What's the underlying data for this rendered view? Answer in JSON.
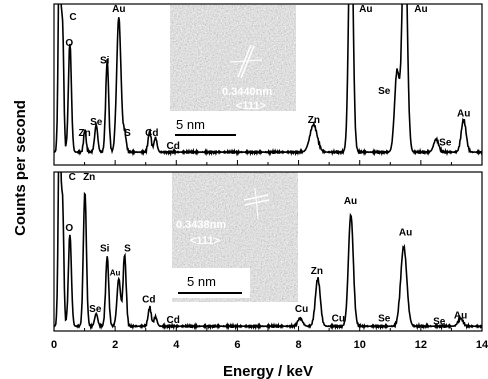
{
  "chart_data": {
    "type": "line",
    "xlabel": "Energy / keV",
    "ylabel": "Counts per second",
    "xlim": [
      0,
      14
    ],
    "xticks": [
      0,
      2,
      4,
      6,
      8,
      10,
      12,
      14
    ],
    "grid": false,
    "panels": [
      {
        "id": "top",
        "ylim": [
          0,
          100
        ],
        "baseline": 8,
        "peaks": [
          {
            "x": 0.18,
            "y": 140,
            "w": 0.04
          },
          {
            "x": 0.28,
            "y": 76,
            "w": 0.04
          },
          {
            "x": 0.52,
            "y": 68,
            "w": 0.05
          },
          {
            "x": 1.01,
            "y": 14,
            "w": 0.04
          },
          {
            "x": 1.38,
            "y": 17,
            "w": 0.05
          },
          {
            "x": 1.74,
            "y": 57,
            "w": 0.05
          },
          {
            "x": 2.12,
            "y": 84,
            "w": 0.07
          },
          {
            "x": 2.31,
            "y": 12,
            "w": 0.05
          },
          {
            "x": 3.13,
            "y": 13,
            "w": 0.05
          },
          {
            "x": 3.32,
            "y": 9,
            "w": 0.05
          },
          {
            "x": 8.49,
            "y": 17,
            "w": 0.12
          },
          {
            "x": 9.71,
            "y": 160,
            "w": 0.07
          },
          {
            "x": 11.22,
            "y": 50,
            "w": 0.08
          },
          {
            "x": 11.47,
            "y": 150,
            "w": 0.08
          },
          {
            "x": 12.5,
            "y": 8,
            "w": 0.08
          },
          {
            "x": 13.4,
            "y": 20,
            "w": 0.08
          }
        ],
        "labels": [
          {
            "text": "C",
            "x": 0.62,
            "y": 90
          },
          {
            "text": "O",
            "x": 0.5,
            "y": 74
          },
          {
            "text": "Au",
            "x": 2.12,
            "y": 95
          },
          {
            "text": "Si",
            "x": 1.66,
            "y": 63
          },
          {
            "text": "Se",
            "x": 1.38,
            "y": 25
          },
          {
            "text": "Zn",
            "x": 1.0,
            "y": 18
          },
          {
            "text": "S",
            "x": 2.4,
            "y": 18
          },
          {
            "text": "Cd",
            "x": 3.2,
            "y": 18
          },
          {
            "text": "Cd",
            "x": 3.9,
            "y": 10
          },
          {
            "text": "Zn",
            "x": 8.5,
            "y": 26
          },
          {
            "text": "Au",
            "x": 10.2,
            "y": 95
          },
          {
            "text": "Se",
            "x": 10.8,
            "y": 44
          },
          {
            "text": "Au",
            "x": 12.0,
            "y": 95
          },
          {
            "text": "Se",
            "x": 12.8,
            "y": 12
          },
          {
            "text": "Au",
            "x": 13.4,
            "y": 30
          }
        ],
        "inset": {
          "spacing_label": "0.3440nm",
          "plane_label": "<111>",
          "scale_label": "5 nm"
        }
      },
      {
        "id": "bottom",
        "ylim": [
          0,
          100
        ],
        "baseline": 3,
        "peaks": [
          {
            "x": 0.18,
            "y": 140,
            "w": 0.04
          },
          {
            "x": 0.28,
            "y": 76,
            "w": 0.04
          },
          {
            "x": 0.52,
            "y": 58,
            "w": 0.05
          },
          {
            "x": 1.01,
            "y": 85,
            "w": 0.05
          },
          {
            "x": 1.38,
            "y": 8,
            "w": 0.05
          },
          {
            "x": 1.74,
            "y": 44,
            "w": 0.05
          },
          {
            "x": 2.12,
            "y": 30,
            "w": 0.06
          },
          {
            "x": 2.31,
            "y": 45,
            "w": 0.05
          },
          {
            "x": 3.13,
            "y": 12,
            "w": 0.05
          },
          {
            "x": 3.32,
            "y": 6,
            "w": 0.05
          },
          {
            "x": 8.05,
            "y": 5,
            "w": 0.08
          },
          {
            "x": 8.63,
            "y": 30,
            "w": 0.08
          },
          {
            "x": 9.71,
            "y": 70,
            "w": 0.08
          },
          {
            "x": 11.44,
            "y": 50,
            "w": 0.1
          },
          {
            "x": 13.3,
            "y": 5,
            "w": 0.08
          }
        ],
        "labels": [
          {
            "text": "C",
            "x": 0.6,
            "y": 95
          },
          {
            "text": "Zn",
            "x": 1.15,
            "y": 95
          },
          {
            "text": "O",
            "x": 0.5,
            "y": 63
          },
          {
            "text": "Si",
            "x": 1.66,
            "y": 50
          },
          {
            "text": "S",
            "x": 2.4,
            "y": 50
          },
          {
            "text": "Au",
            "x": 2.0,
            "y": 35
          },
          {
            "text": "Se",
            "x": 1.35,
            "y": 12
          },
          {
            "text": "Cd",
            "x": 3.1,
            "y": 18
          },
          {
            "text": "Cd",
            "x": 3.9,
            "y": 5
          },
          {
            "text": "Cu",
            "x": 8.1,
            "y": 12
          },
          {
            "text": "Zn",
            "x": 8.6,
            "y": 36
          },
          {
            "text": "Cu",
            "x": 9.3,
            "y": 6
          },
          {
            "text": "Au",
            "x": 9.7,
            "y": 80
          },
          {
            "text": "Se",
            "x": 10.8,
            "y": 6
          },
          {
            "text": "Au",
            "x": 11.5,
            "y": 60
          },
          {
            "text": "Se",
            "x": 12.6,
            "y": 4
          },
          {
            "text": "Au",
            "x": 13.3,
            "y": 8
          }
        ],
        "inset": {
          "spacing_label": "0.3438nm",
          "plane_label": "<111>",
          "scale_label": "5 nm"
        }
      }
    ]
  }
}
